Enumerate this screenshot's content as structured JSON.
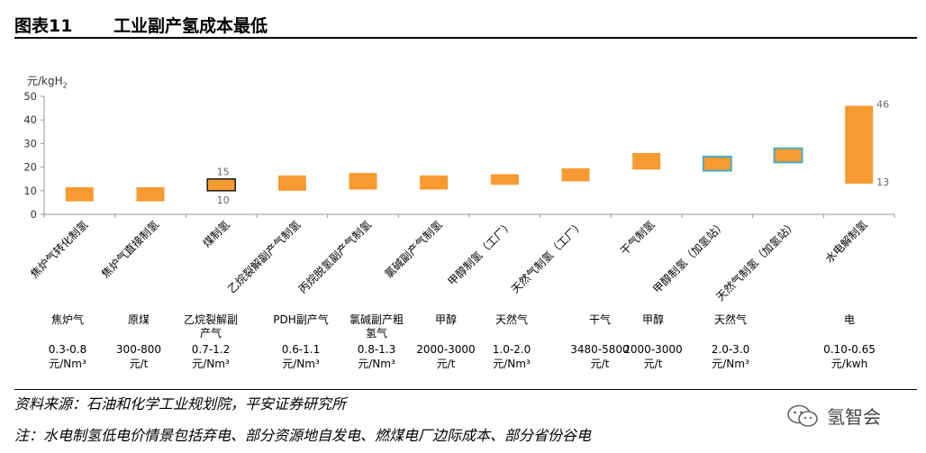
{
  "figure": {
    "number": "图表11",
    "title": "工业副产氢成本最低"
  },
  "chart_data": {
    "type": "bar",
    "subtype": "floating-range",
    "yunit": "元/kgH",
    "yunit_sub": "2",
    "ylim": [
      0,
      50
    ],
    "yticks": [
      "0",
      "10",
      "20",
      "30",
      "40",
      "50"
    ],
    "categories": [
      "焦炉气转化制氢",
      "焦炉气直接制氢",
      "煤制氢",
      "乙烷裂解副产气制氢",
      "丙烷脱氢副产气制氢",
      "氯碱副产气制氢",
      "甲醇制氢（工厂）",
      "天然气制氢（工厂）",
      "干气制氢",
      "甲醇制氢（加氢站）",
      "天然气制氢（加氢站）",
      "水电解制氢"
    ],
    "ranges": [
      [
        5.5,
        11.5
      ],
      [
        5.5,
        11.5
      ],
      [
        10,
        15
      ],
      [
        10,
        16.5
      ],
      [
        10.5,
        17.5
      ],
      [
        10.5,
        16.5
      ],
      [
        12.5,
        17
      ],
      [
        14,
        19.5
      ],
      [
        19,
        26
      ],
      [
        18.5,
        24.5
      ],
      [
        22,
        28
      ],
      [
        13,
        46
      ]
    ],
    "styles": [
      "plain",
      "plain",
      "dark-outline",
      "plain",
      "plain",
      "plain",
      "plain",
      "plain",
      "plain",
      "teal-outline",
      "teal-outline",
      "plain"
    ],
    "data_labels": [
      {
        "index": 2,
        "low": "10",
        "high": "15"
      },
      {
        "index": 11,
        "low": "13",
        "high": "46"
      }
    ],
    "colors": {
      "bar": "#F79A2F",
      "dark_outline": "#1a1a1a",
      "teal_outline": "#4BACC6",
      "axis": "#9a9a9a"
    },
    "grid": false
  },
  "feedstock": [
    {
      "name": "焦炉气",
      "price": "0.3-0.8",
      "unit": "元/Nm³"
    },
    {
      "name": "原煤",
      "price": "300-800",
      "unit": "元/t"
    },
    {
      "name": "乙烷裂解副产气",
      "price": "0.7-1.2",
      "unit": "元/Nm³"
    },
    {
      "name": "PDH副产气",
      "price": "0.6-1.1",
      "unit": "元/Nm³"
    },
    {
      "name": "氯碱副产粗氢气",
      "price": "0.8-1.3",
      "unit": "元/Nm³"
    },
    {
      "name": "甲醇",
      "price": "2000-3000",
      "unit": "元/t"
    },
    {
      "name": "天然气",
      "price": "1.0-2.0",
      "unit": "元/Nm³"
    },
    {
      "name": "干气",
      "price": "3480-5800",
      "unit": "元/t"
    },
    {
      "name": "甲醇",
      "price": "2000-3000",
      "unit": "元/t"
    },
    {
      "name": "天然气",
      "price": "2.0-3.0",
      "unit": "元/Nm³"
    },
    {
      "name": "电",
      "price": "0.10-0.65",
      "unit": "元/kwh"
    }
  ],
  "source": "资料来源：石油和化学工业规划院，平安证券研究所",
  "note": "注：水电制氢低电价情景包括弃电、部分资源地自发电、燃煤电厂边际成本、部分省份谷电",
  "logo": {
    "icon": "wechat-icon",
    "text": "氢智会"
  }
}
